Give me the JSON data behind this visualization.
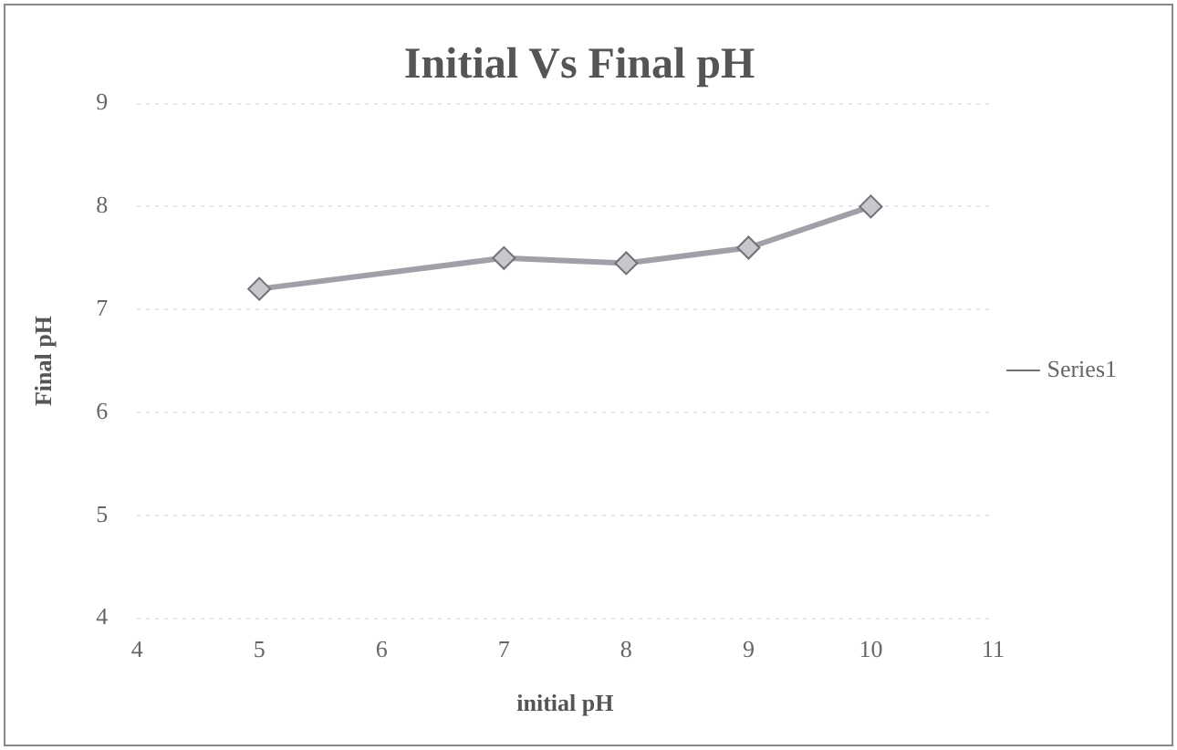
{
  "chart_data": {
    "type": "line",
    "title": "Initial Vs Final pH",
    "xlabel": "initial pH",
    "ylabel": "Final pH",
    "x": [
      5,
      7,
      8,
      9,
      10
    ],
    "series": [
      {
        "name": "Series1",
        "color": "#a0a0a8",
        "values": [
          7.2,
          7.5,
          7.45,
          7.6,
          8.0
        ]
      }
    ],
    "xlim": [
      4,
      11
    ],
    "xticks": [
      4,
      5,
      6,
      7,
      8,
      9,
      10,
      11
    ],
    "ylim": [
      4,
      9
    ],
    "yticks": [
      4,
      5,
      6,
      7,
      8,
      9
    ],
    "grid": "y",
    "legend": "right",
    "marker": "diamond",
    "line_style": "solid"
  }
}
